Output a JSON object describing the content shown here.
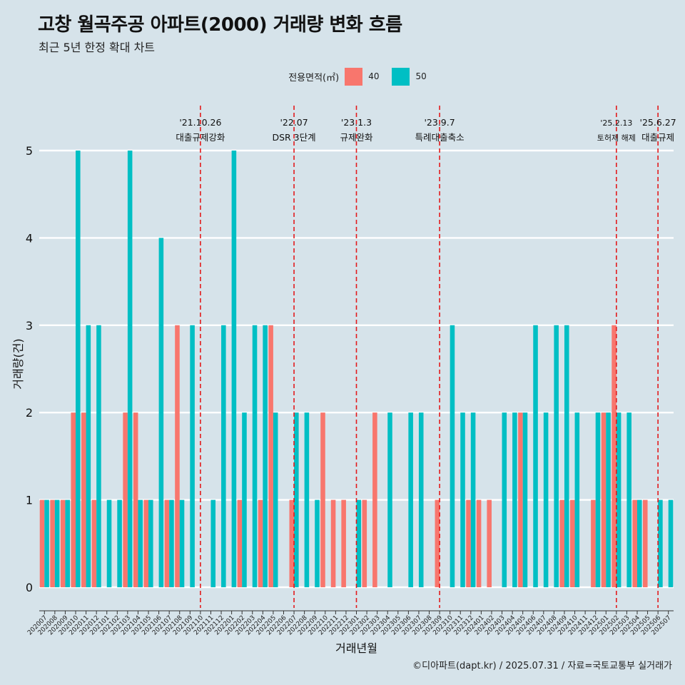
{
  "title": "고창 월곡주공 아파트(2000) 거래량 변화 흐름",
  "subtitle": "최근 5년 한정 확대 차트",
  "source": "©디아파트(dapt.kr) / 2025.07.31 / 자료=국토교통부 실거래가",
  "colors": {
    "s40": "#f8766d",
    "s50": "#00bfc4",
    "background": "#d6e3ea",
    "vline": "#e31a1c"
  },
  "chart_data": {
    "type": "bar",
    "title": "고창 월곡주공 아파트(2000) 거래량 변화 흐름",
    "xlabel": "거래년월",
    "ylabel": "거래량(건)",
    "ylim": [
      -0.25,
      5.5
    ],
    "yticks": [
      0,
      1,
      2,
      3,
      4,
      5
    ],
    "legend_title": "전용면적(㎡)",
    "categories": [
      "202007",
      "202008",
      "202009",
      "202010",
      "202011",
      "202012",
      "202101",
      "202102",
      "202103",
      "202104",
      "202105",
      "202106",
      "202107",
      "202108",
      "202109",
      "202110",
      "202111",
      "202112",
      "202201",
      "202202",
      "202203",
      "202204",
      "202205",
      "202206",
      "202207",
      "202208",
      "202209",
      "202210",
      "202211",
      "202212",
      "202301",
      "202302",
      "202303",
      "202304",
      "202305",
      "202306",
      "202307",
      "202308",
      "202309",
      "202310",
      "202311",
      "202312",
      "202401",
      "202402",
      "202403",
      "202404",
      "202405",
      "202406",
      "202407",
      "202408",
      "202409",
      "202410",
      "202411",
      "202412",
      "202501",
      "202502",
      "202503",
      "202504",
      "202505",
      "202506",
      "202507"
    ],
    "series": [
      {
        "name": "40",
        "values": [
          1,
          1,
          1,
          2,
          2,
          1,
          0,
          0,
          2,
          2,
          1,
          0,
          1,
          3,
          0,
          0,
          0,
          0,
          0,
          1,
          0,
          1,
          3,
          0,
          1,
          0,
          0,
          2,
          1,
          1,
          0,
          1,
          2,
          0,
          0,
          0,
          0,
          0,
          1,
          0,
          0,
          1,
          1,
          1,
          0,
          0,
          2,
          0,
          0,
          0,
          1,
          1,
          0,
          1,
          2,
          3,
          0,
          1,
          1,
          0,
          0
        ]
      },
      {
        "name": "50",
        "values": [
          1,
          1,
          1,
          5,
          3,
          3,
          1,
          1,
          5,
          1,
          1,
          4,
          1,
          1,
          3,
          0,
          1,
          3,
          5,
          2,
          3,
          3,
          2,
          0,
          2,
          2,
          1,
          0,
          0,
          0,
          1,
          0,
          0,
          2,
          0,
          2,
          2,
          0,
          0,
          3,
          2,
          2,
          0,
          0,
          2,
          2,
          2,
          3,
          2,
          3,
          3,
          2,
          0,
          2,
          2,
          2,
          2,
          1,
          0,
          1,
          1
        ]
      }
    ],
    "annotations": [
      {
        "date": "'21.10.26",
        "label": "대출규제강화",
        "at": "202110"
      },
      {
        "date": "'22.07",
        "label": "DSR 3단계",
        "at": "202207"
      },
      {
        "date": "'23.1.3",
        "label": "규제완화",
        "at": "202301"
      },
      {
        "date": "'23.9.7",
        "label": "특례대출축소",
        "at": "202309"
      },
      {
        "date": "'25.2.13",
        "label": "토허제 해제",
        "at": "202502"
      },
      {
        "date": "'25.6.27",
        "label": "대출규제",
        "at": "202506"
      }
    ]
  }
}
